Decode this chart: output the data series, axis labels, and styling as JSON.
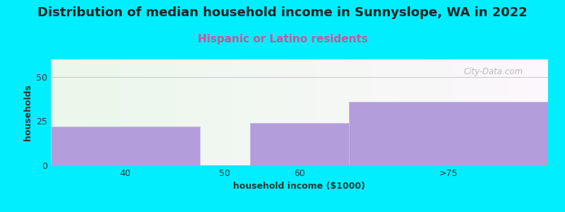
{
  "title": "Distribution of median household income in Sunnyslope, WA in 2022",
  "subtitle": "Hispanic or Latino residents",
  "xlabel": "household income ($1000)",
  "ylabel": "households",
  "bin_edges": [
    30,
    45,
    50,
    60,
    80
  ],
  "values": [
    22,
    0,
    24,
    36
  ],
  "bar_color": "#b39ddb",
  "bar_edgecolor": "#c8bce8",
  "background_color": "#00eeff",
  "title_color": "#222222",
  "title_fontsize": 13,
  "subtitle_fontsize": 11,
  "subtitle_color": "#cc5599",
  "axis_label_fontsize": 9,
  "tick_fontsize": 9,
  "ylim": [
    0,
    60
  ],
  "yticks": [
    0,
    25,
    50
  ],
  "xtick_labels": [
    "40",
    "50",
    "60",
    ">75"
  ],
  "xtick_positions": [
    37.5,
    47.5,
    55,
    70
  ],
  "watermark": "City-Data.com",
  "plot_bg_color_left": "#d8f0d0",
  "plot_bg_color_right": "#f0f8ff"
}
